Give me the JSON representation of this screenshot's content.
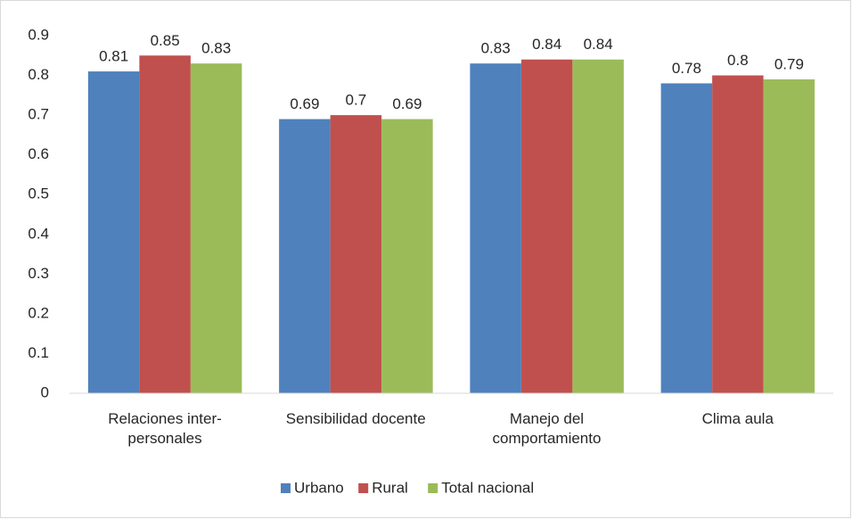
{
  "chart_data": {
    "type": "bar",
    "categories": [
      "Relaciones inter-\npersonales",
      "Sensibilidad docente",
      "Manejo del\ncomportamiento",
      "Clima aula"
    ],
    "series": [
      {
        "name": "Urbano",
        "color": "#4f81bd",
        "values": [
          0.81,
          0.69,
          0.83,
          0.78
        ]
      },
      {
        "name": "Rural",
        "color": "#c0504d",
        "values": [
          0.85,
          0.7,
          0.84,
          0.8
        ]
      },
      {
        "name": "Total nacional",
        "color": "#9bbb59",
        "values": [
          0.83,
          0.69,
          0.84,
          0.79
        ]
      }
    ],
    "ylim": [
      0,
      0.9
    ],
    "yticks": [
      0,
      0.1,
      0.2,
      0.3,
      0.4,
      0.5,
      0.6,
      0.7,
      0.8,
      0.9
    ],
    "grid": false,
    "legend": "bottom"
  }
}
